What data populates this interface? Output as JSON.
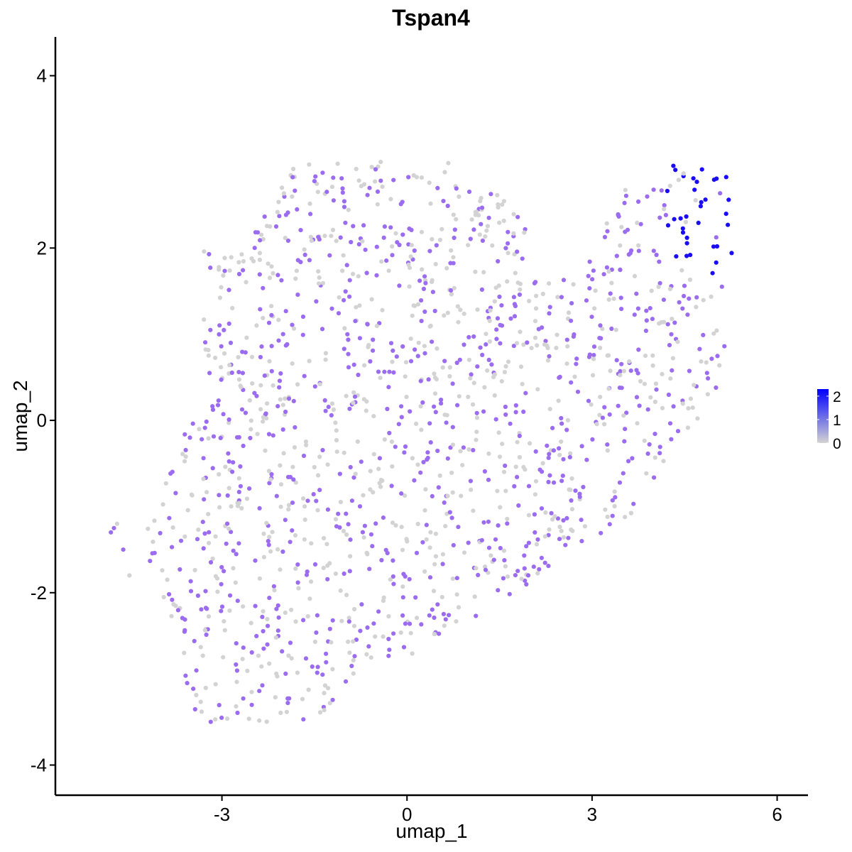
{
  "chart_data": {
    "type": "scatter",
    "title": "Tspan4",
    "xlabel": "umap_1",
    "ylabel": "umap_2",
    "xlim": [
      -5.7,
      6.5
    ],
    "ylim": [
      -4.35,
      4.45
    ],
    "xticks": [
      -3,
      0,
      3,
      6
    ],
    "yticks": [
      -4,
      -2,
      0,
      2,
      4
    ],
    "xtick_labels": [
      "-3",
      "0",
      "3",
      "6"
    ],
    "ytick_labels": [
      "-4",
      "-2",
      "0",
      "2",
      "4"
    ],
    "grid": false,
    "legend_position": "right",
    "color_scale": {
      "low": "#d3d3d3",
      "high": "#0000ff",
      "min": 0,
      "max": 2.3,
      "breaks": [
        0,
        1,
        2
      ],
      "break_labels": [
        "0",
        "1",
        "2"
      ]
    },
    "point_colors": {
      "zero": "#d3d3d3",
      "mid": "#9b6cf0",
      "high": "#1a0cf5"
    },
    "n_points": 1500,
    "description_of_distribution": "",
    "points": []
  }
}
